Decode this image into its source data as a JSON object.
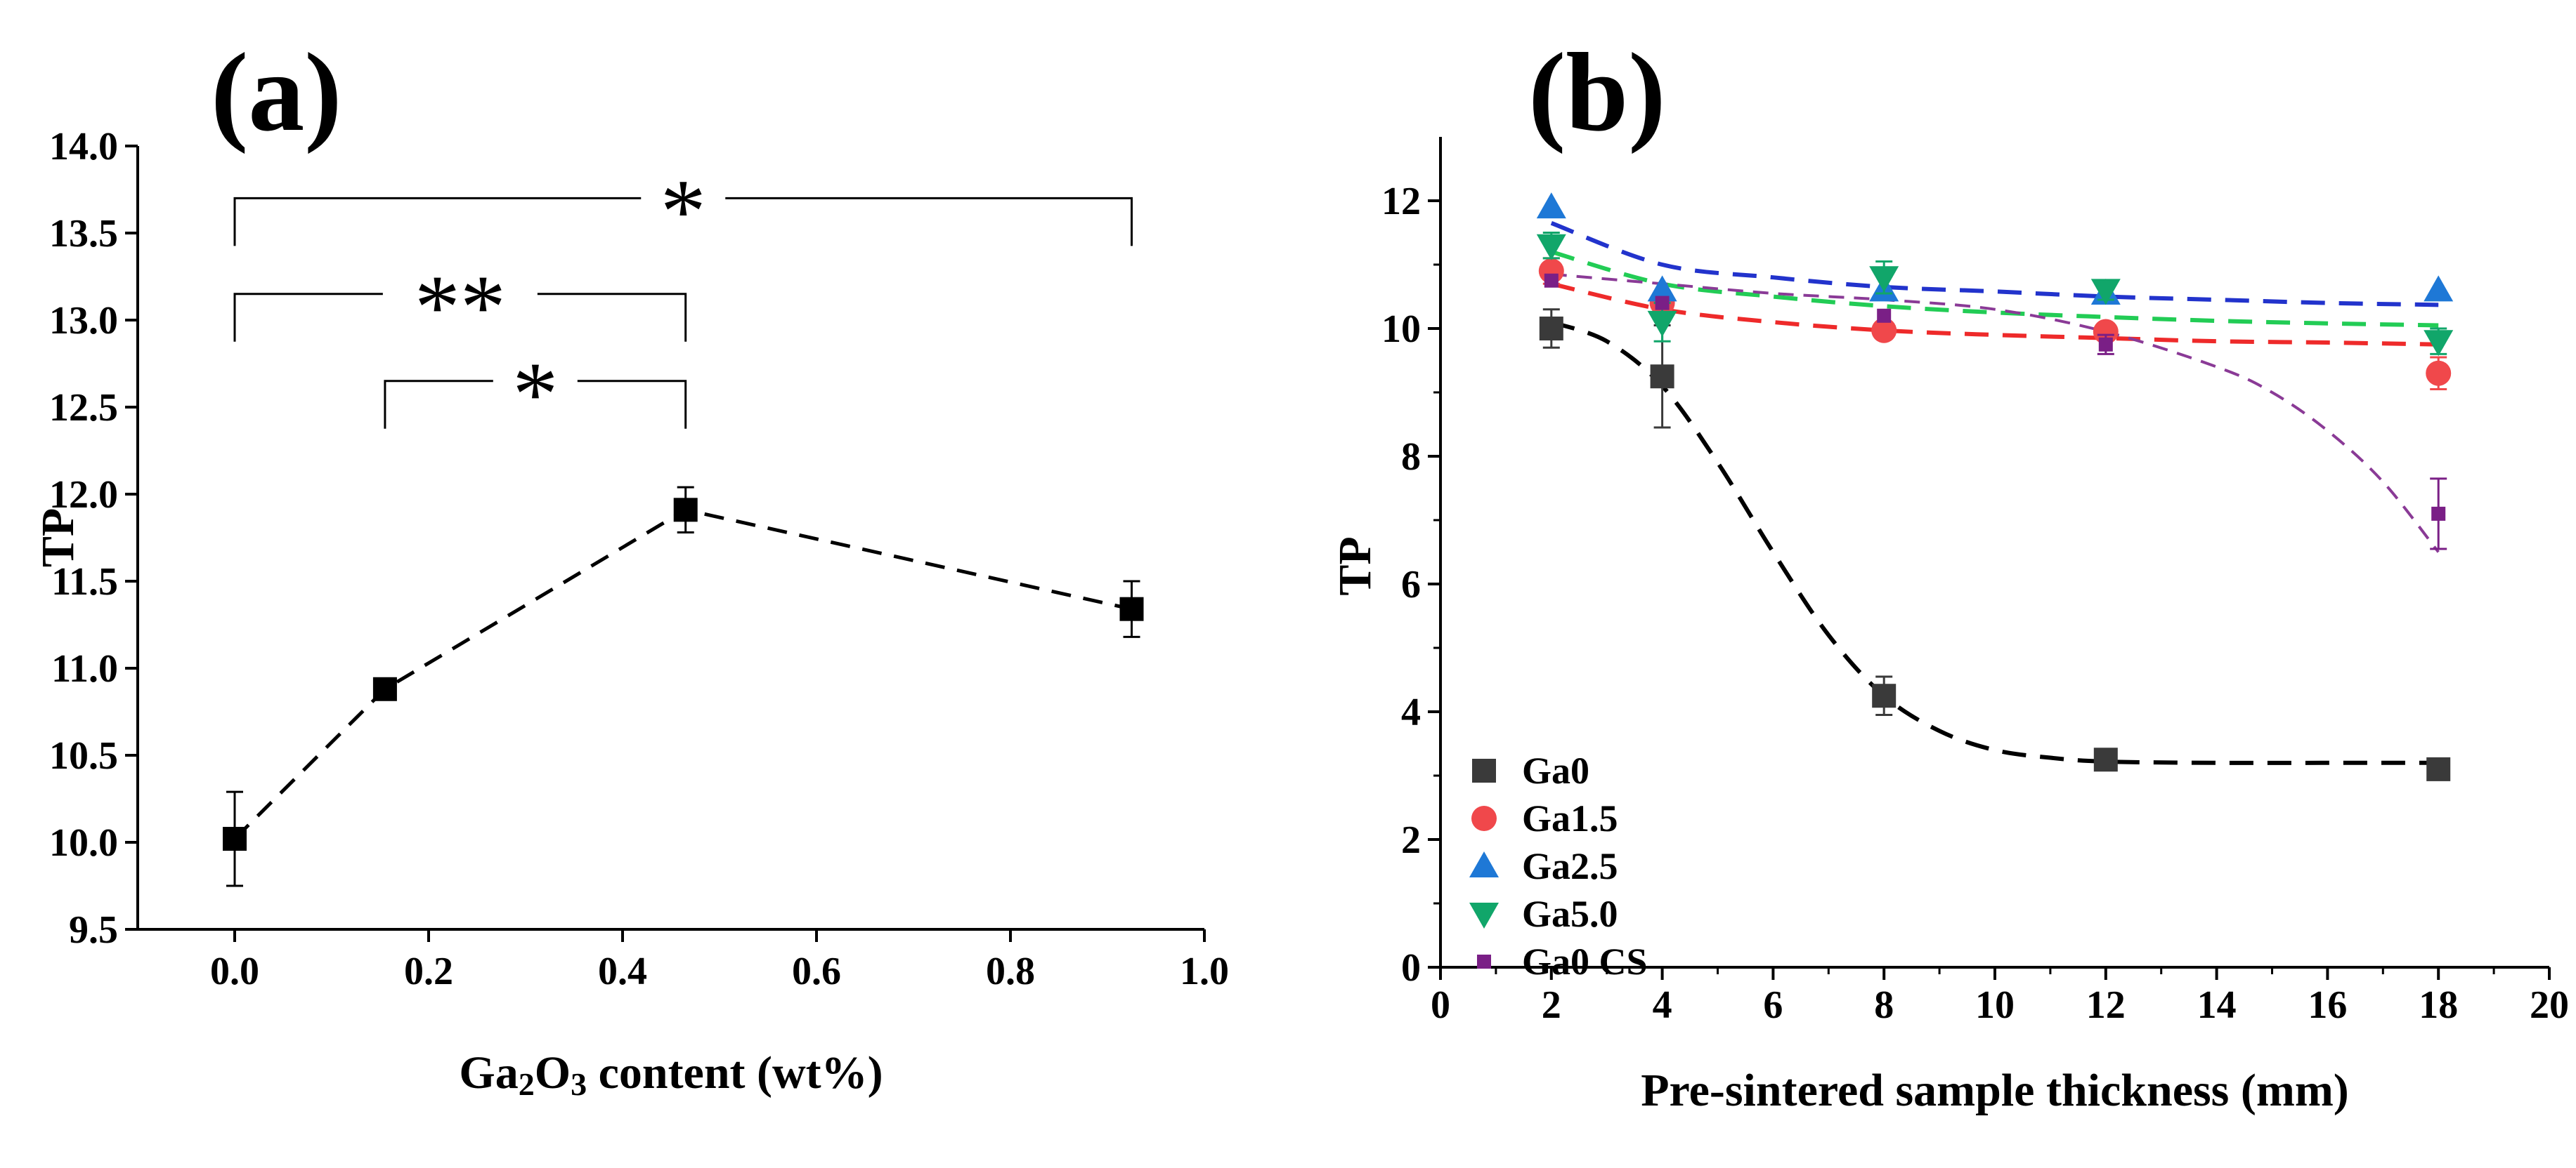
{
  "chart_data": [
    {
      "type": "scatter",
      "panel_label": "(a)",
      "xlabel_parts": [
        "Ga",
        "2",
        "O",
        "3",
        " content (wt%)"
      ],
      "ylabel": "TP",
      "xlim": [
        -0.1,
        1.0
      ],
      "ylim": [
        9.5,
        14.0
      ],
      "xticks": [
        "0.0",
        "0.2",
        "0.4",
        "0.6",
        "0.8",
        "1.0"
      ],
      "xtick_values": [
        0.0,
        0.2,
        0.4,
        0.6,
        0.8,
        1.0
      ],
      "yticks": [
        "9.5",
        "10.0",
        "10.5",
        "11.0",
        "11.5",
        "12.0",
        "12.5",
        "13.0",
        "13.5",
        "14.0"
      ],
      "ytick_values": [
        9.5,
        10.0,
        10.5,
        11.0,
        11.5,
        12.0,
        12.5,
        13.0,
        13.5,
        14.0
      ],
      "points": [
        {
          "x": 0.0,
          "y": 10.02,
          "err": 0.27
        },
        {
          "x": 0.155,
          "y": 10.88,
          "err": 0.03
        },
        {
          "x": 0.465,
          "y": 11.91,
          "err": 0.13
        },
        {
          "x": 0.925,
          "y": 11.34,
          "err": 0.16
        }
      ],
      "significance": [
        {
          "x1": 0.0,
          "x2": 0.925,
          "y": 13.7,
          "label": "*"
        },
        {
          "x1": 0.0,
          "x2": 0.465,
          "y": 13.15,
          "label": "**"
        },
        {
          "x1": 0.155,
          "x2": 0.465,
          "y": 12.65,
          "label": "*"
        }
      ],
      "style": {
        "marker_color": "#000000",
        "line": "dashed"
      }
    },
    {
      "type": "scatter",
      "panel_label": "(b)",
      "xlabel": "Pre-sintered sample thickness (mm)",
      "ylabel": "TP",
      "xlim": [
        0,
        20
      ],
      "ylim": [
        0,
        13
      ],
      "xticks": [
        "0",
        "2",
        "4",
        "6",
        "8",
        "10",
        "12",
        "14",
        "16",
        "18",
        "20"
      ],
      "xtick_values": [
        0,
        2,
        4,
        6,
        8,
        10,
        12,
        14,
        16,
        18,
        20
      ],
      "yticks": [
        "0",
        "2",
        "4",
        "6",
        "8",
        "10",
        "12"
      ],
      "ytick_values": [
        0,
        2,
        4,
        6,
        8,
        10,
        12
      ],
      "x": [
        2,
        4,
        8,
        12,
        18
      ],
      "series": [
        {
          "name": "Ga0",
          "marker": "square",
          "color": "#3a3a3a",
          "fit_color": "#000000",
          "values": [
            10.0,
            9.25,
            4.25,
            3.25,
            3.1
          ],
          "err": [
            0.3,
            0.8,
            0.3,
            0.15,
            0.15
          ],
          "fit": [
            [
              2,
              10.1
            ],
            [
              3,
              9.8
            ],
            [
              4,
              9.1
            ],
            [
              5,
              7.9
            ],
            [
              6,
              6.5
            ],
            [
              7,
              5.2
            ],
            [
              8,
              4.25
            ],
            [
              9,
              3.7
            ],
            [
              10,
              3.4
            ],
            [
              11,
              3.28
            ],
            [
              12,
              3.22
            ],
            [
              14,
              3.2
            ],
            [
              16,
              3.2
            ],
            [
              18,
              3.2
            ]
          ]
        },
        {
          "name": "Ga1.5",
          "marker": "circle",
          "color": "#f0484b",
          "fit_color": "#ee2a2a",
          "values": [
            10.9,
            10.4,
            9.97,
            9.95,
            9.3
          ],
          "err": [
            0.2,
            0.1,
            0.1,
            0.1,
            0.25
          ],
          "fit": [
            [
              2,
              10.7
            ],
            [
              4,
              10.3
            ],
            [
              6,
              10.1
            ],
            [
              8,
              9.97
            ],
            [
              10,
              9.9
            ],
            [
              12,
              9.85
            ],
            [
              14,
              9.8
            ],
            [
              16,
              9.78
            ],
            [
              18,
              9.75
            ]
          ]
        },
        {
          "name": "Ga2.5",
          "marker": "triangle-up",
          "color": "#1e78d6",
          "fit_color": "#2233cc",
          "values": [
            11.9,
            10.6,
            10.6,
            10.55,
            10.6
          ],
          "err": [
            0.1,
            0.1,
            0.1,
            0.1,
            0.1
          ],
          "fit": [
            [
              2,
              11.65
            ],
            [
              4,
              11.0
            ],
            [
              6,
              10.8
            ],
            [
              8,
              10.65
            ],
            [
              10,
              10.58
            ],
            [
              12,
              10.5
            ],
            [
              14,
              10.45
            ],
            [
              16,
              10.4
            ],
            [
              18,
              10.37
            ]
          ]
        },
        {
          "name": "Ga5.0",
          "marker": "triangle-down",
          "color": "#11a66a",
          "fit_color": "#22cc55",
          "values": [
            11.3,
            10.1,
            10.8,
            10.6,
            9.8
          ],
          "err": [
            0.2,
            0.3,
            0.25,
            0.15,
            0.2
          ],
          "fit": [
            [
              2,
              11.2
            ],
            [
              4,
              10.7
            ],
            [
              6,
              10.5
            ],
            [
              8,
              10.35
            ],
            [
              10,
              10.25
            ],
            [
              12,
              10.18
            ],
            [
              14,
              10.12
            ],
            [
              16,
              10.08
            ],
            [
              18,
              10.05
            ]
          ]
        },
        {
          "name": "Ga0 CS",
          "marker": "small-square",
          "color": "#7a1f86",
          "fit_color": "#8a3a96",
          "values": [
            10.75,
            10.4,
            10.2,
            9.75,
            7.1
          ],
          "err": [
            0.1,
            0.1,
            0.1,
            0.15,
            0.55
          ],
          "fit": [
            [
              2,
              10.85
            ],
            [
              4,
              10.7
            ],
            [
              6,
              10.55
            ],
            [
              8,
              10.45
            ],
            [
              10,
              10.3
            ],
            [
              12,
              9.95
            ],
            [
              14,
              9.4
            ],
            [
              15,
              9.0
            ],
            [
              16,
              8.4
            ],
            [
              17,
              7.6
            ],
            [
              18,
              6.5
            ]
          ]
        }
      ],
      "legend_position": "bottom-left"
    }
  ]
}
